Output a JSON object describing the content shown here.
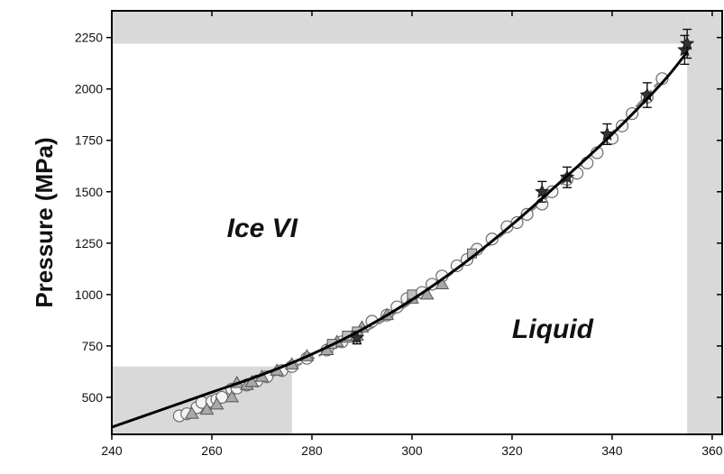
{
  "chart_data": {
    "type": "scatter",
    "title": "",
    "xlabel": "",
    "ylabel": "Pressure (MPa)",
    "xlim": [
      240,
      362
    ],
    "ylim": [
      320,
      2380
    ],
    "x_ticks": [
      240,
      260,
      280,
      300,
      320,
      340,
      360
    ],
    "y_ticks": [
      500,
      750,
      1000,
      1250,
      1500,
      1750,
      2000,
      2250
    ],
    "grid": false,
    "legend": "none",
    "shaded_regions": [
      {
        "x": [
          240,
          355
        ],
        "y": [
          2220,
          2380
        ]
      },
      {
        "x": [
          355,
          362
        ],
        "y": [
          320,
          2380
        ]
      },
      {
        "x": [
          240,
          276
        ],
        "y": [
          320,
          650
        ]
      }
    ],
    "annotations": [
      {
        "text": "Ice VI",
        "x": 263,
        "y": 1280
      },
      {
        "text": "Liquid",
        "x": 320,
        "y": 790
      }
    ],
    "series": [
      {
        "marker": "line",
        "color": "#000000",
        "x": [
          240,
          250,
          260,
          270,
          280,
          290,
          300,
          310,
          320,
          330,
          340,
          350,
          355
        ],
        "y": [
          355,
          440,
          525,
          610,
          710,
          830,
          975,
          1145,
          1340,
          1555,
          1780,
          2030,
          2180
        ]
      },
      {
        "marker": "dashed-line",
        "color": "#888888",
        "x": [
          254,
          270,
          290,
          310,
          330,
          350
        ],
        "y": [
          418,
          580,
          810,
          1140,
          1540,
          2050
        ]
      },
      {
        "marker": "circle",
        "x": [
          253.5,
          255,
          257,
          258,
          260,
          261,
          262,
          264,
          265,
          267,
          269,
          271,
          274,
          276,
          279,
          283,
          286,
          289,
          292,
          295,
          297,
          299,
          302,
          304,
          306,
          309,
          311,
          313,
          316,
          319,
          321,
          323,
          326,
          328,
          331,
          333,
          335,
          337,
          340,
          342,
          344,
          347,
          350
        ],
        "y": [
          410,
          420,
          450,
          475,
          480,
          490,
          500,
          540,
          545,
          560,
          580,
          600,
          630,
          650,
          690,
          730,
          770,
          810,
          870,
          900,
          940,
          980,
          1010,
          1050,
          1090,
          1140,
          1170,
          1220,
          1270,
          1330,
          1350,
          1390,
          1440,
          1500,
          1560,
          1590,
          1640,
          1690,
          1760,
          1820,
          1880,
          1960,
          2050
        ]
      },
      {
        "marker": "triangle",
        "x": [
          256,
          259,
          261,
          264,
          265,
          267,
          268,
          270,
          273,
          276,
          279,
          283,
          285,
          287,
          289,
          290,
          295,
          300,
          303,
          306
        ],
        "y": [
          420,
          440,
          465,
          500,
          570,
          560,
          575,
          600,
          630,
          660,
          700,
          730,
          770,
          790,
          800,
          840,
          900,
          980,
          1000,
          1050
        ]
      },
      {
        "marker": "square",
        "x": [
          284,
          287,
          289,
          300,
          312
        ],
        "y": [
          760,
          800,
          820,
          1000,
          1200
        ]
      },
      {
        "marker": "star-errorbar",
        "x": [
          289,
          326,
          331,
          339,
          347,
          354.5,
          355
        ],
        "y": [
          790,
          1500,
          1570,
          1780,
          1970,
          2190,
          2220
        ],
        "err": [
          30,
          50,
          50,
          50,
          60,
          70,
          70
        ]
      }
    ]
  }
}
